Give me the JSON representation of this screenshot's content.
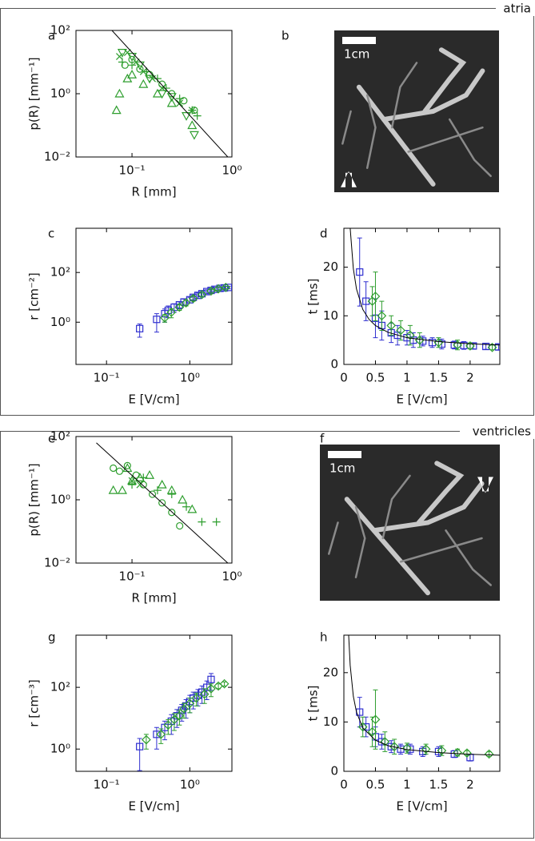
{
  "sections": [
    "atria",
    "ventricles"
  ],
  "chart_data": [
    {
      "type": "scatter",
      "panel": "a",
      "xlabel": "R [mm]",
      "ylabel": "p(R) [mm⁻¹]",
      "xscale": "log",
      "yscale": "log",
      "xlim": [
        0.0275,
        1
      ],
      "ylim": [
        0.01,
        100
      ],
      "xticks": [
        {
          "value": 0.1,
          "label": "10⁻¹"
        },
        {
          "value": 1,
          "label": "10⁰"
        }
      ],
      "yticks": [
        {
          "value": 0.01,
          "label": "10⁻²"
        },
        {
          "value": 1,
          "label": "10⁰"
        },
        {
          "value": 100,
          "label": "10²"
        }
      ],
      "series": [
        {
          "marker": "x",
          "color": "#2e9e2e",
          "x": [
            0.075,
            0.09,
            0.11,
            0.13,
            0.16,
            0.2,
            0.3,
            0.4
          ],
          "values": [
            15,
            20,
            10,
            5,
            3,
            1.5,
            0.5,
            0.3
          ]
        },
        {
          "marker": "o",
          "color": "#2e9e2e",
          "x": [
            0.085,
            0.1,
            0.12,
            0.15,
            0.2,
            0.25,
            0.33,
            0.42
          ],
          "values": [
            8,
            12,
            6,
            4,
            2,
            1,
            0.6,
            0.3
          ]
        },
        {
          "marker": "^",
          "color": "#2e9e2e",
          "x": [
            0.07,
            0.075,
            0.09,
            0.1,
            0.13,
            0.18,
            0.25,
            0.4
          ],
          "values": [
            0.3,
            1,
            3,
            4,
            2,
            1,
            0.5,
            0.1
          ]
        },
        {
          "marker": "v",
          "color": "#2e9e2e",
          "x": [
            0.08,
            0.1,
            0.12,
            0.15,
            0.2,
            0.25,
            0.35,
            0.42
          ],
          "values": [
            20,
            15,
            8,
            3,
            1,
            0.8,
            0.2,
            0.05
          ]
        },
        {
          "marker": "+",
          "color": "#2e9e2e",
          "x": [
            0.08,
            0.1,
            0.14,
            0.18,
            0.22,
            0.3,
            0.4,
            0.45
          ],
          "values": [
            10,
            8,
            5,
            3,
            1.5,
            0.7,
            0.3,
            0.2
          ]
        },
        {
          "kind": "line",
          "color": "#000000",
          "x": [
            0.063,
            0.91
          ],
          "values": [
            100,
            0.01
          ]
        }
      ]
    },
    {
      "type": "image",
      "panel": "b",
      "scale_label": "1cm"
    },
    {
      "type": "scatter",
      "panel": "c",
      "xlabel": "E [V/cm]",
      "ylabel": "r  [cm⁻²]",
      "xscale": "log",
      "yscale": "log",
      "xlim": [
        0.043,
        3.2
      ],
      "ylim": [
        0.02,
        6000
      ],
      "xticks": [
        {
          "value": 0.1,
          "label": "10⁻¹"
        },
        {
          "value": 1,
          "label": "10⁰"
        }
      ],
      "yticks": [
        {
          "value": 1,
          "label": "10⁰"
        },
        {
          "value": 100,
          "label": "10²"
        }
      ],
      "series": [
        {
          "marker": "s",
          "color": "#3030d0",
          "x": [
            0.25,
            0.4,
            0.5,
            0.55,
            0.65,
            0.75,
            0.85,
            1.0,
            1.1,
            1.25,
            1.4,
            1.6,
            1.8,
            2.0,
            2.3,
            2.6,
            2.9
          ],
          "values": [
            0.55,
            1.3,
            2.2,
            3,
            4,
            5,
            6.5,
            8,
            10,
            12,
            14,
            17,
            19,
            21,
            23,
            24,
            25
          ],
          "errors": [
            0.3,
            0.9,
            1.2,
            1.5,
            1.5,
            1.5,
            2,
            2,
            2,
            3,
            3,
            3,
            3,
            3,
            3,
            3,
            3
          ]
        },
        {
          "marker": "d",
          "color": "#2e9e2e",
          "x": [
            0.5,
            0.6,
            0.75,
            0.9,
            1.1,
            1.4,
            1.8,
            2.2,
            2.7
          ],
          "values": [
            1.5,
            2.5,
            4,
            6,
            9,
            13,
            18,
            22,
            25
          ],
          "errors": [
            0.5,
            1,
            1,
            1.5,
            2,
            2,
            3,
            3,
            3
          ]
        }
      ]
    },
    {
      "type": "scatter",
      "panel": "d",
      "xlabel": "E [V/cm]",
      "ylabel": "t  [ms]",
      "xscale": "linear",
      "yscale": "linear",
      "xlim": [
        0,
        2.47
      ],
      "ylim": [
        0,
        28
      ],
      "xticks": [
        0,
        0.5,
        1,
        1.5,
        2
      ],
      "yticks": [
        0,
        10,
        20
      ],
      "series": [
        {
          "marker": "s",
          "color": "#3030d0",
          "x": [
            0.25,
            0.35,
            0.5,
            0.6,
            0.75,
            0.85,
            1.0,
            1.1,
            1.25,
            1.4,
            1.55,
            1.75,
            1.9,
            2.05,
            2.25,
            2.45
          ],
          "values": [
            19,
            13,
            9.5,
            8,
            6.5,
            6,
            5.5,
            5,
            4.8,
            4.5,
            4.2,
            4,
            3.9,
            3.8,
            3.7,
            3.6
          ],
          "errors": [
            7,
            4,
            4,
            3,
            2,
            2,
            1.5,
            1.5,
            1,
            1,
            1,
            0.8,
            0.8,
            0.6,
            0.6,
            0.6
          ]
        },
        {
          "marker": "d",
          "color": "#2e9e2e",
          "x": [
            0.45,
            0.5,
            0.6,
            0.75,
            0.9,
            1.05,
            1.2,
            1.5,
            1.8,
            2.0,
            2.35
          ],
          "values": [
            13,
            14,
            10,
            8,
            7,
            6,
            5,
            4.5,
            4,
            3.8,
            3.5
          ],
          "errors": [
            3,
            5,
            3,
            2,
            2,
            2,
            1.5,
            1,
            1,
            0.6,
            0.5
          ]
        },
        {
          "kind": "line",
          "color": "#000000",
          "x": [
            0.1,
            0.15,
            0.2,
            0.3,
            0.4,
            0.5,
            0.7,
            1,
            1.5,
            2,
            2.47
          ],
          "values": [
            28,
            19.7,
            15.5,
            11.3,
            9.25,
            8,
            6.6,
            5.5,
            4.7,
            4.25,
            4.0
          ]
        }
      ]
    },
    {
      "type": "scatter",
      "panel": "e",
      "xlabel": "R [mm]",
      "ylabel": "p(R) [mm⁻¹]",
      "xscale": "log",
      "yscale": "log",
      "xlim": [
        0.0275,
        1
      ],
      "ylim": [
        0.01,
        100
      ],
      "xticks": [
        {
          "value": 0.1,
          "label": "10⁻¹"
        },
        {
          "value": 1,
          "label": "10⁰"
        }
      ],
      "yticks": [
        {
          "value": 0.01,
          "label": "10⁻²"
        },
        {
          "value": 1,
          "label": "10⁰"
        },
        {
          "value": 100,
          "label": "10²"
        }
      ],
      "series": [
        {
          "marker": "o",
          "color": "#2e9e2e",
          "x": [
            0.065,
            0.075,
            0.09,
            0.11,
            0.13,
            0.16,
            0.2,
            0.25,
            0.3
          ],
          "values": [
            10,
            8,
            12,
            6,
            3,
            1.5,
            0.8,
            0.4,
            0.15
          ]
        },
        {
          "marker": "^",
          "color": "#2e9e2e",
          "x": [
            0.065,
            0.08,
            0.09,
            0.1,
            0.12,
            0.15,
            0.2,
            0.25,
            0.32,
            0.4
          ],
          "values": [
            2,
            2,
            10,
            4,
            5,
            6,
            3,
            2,
            1,
            0.5
          ]
        },
        {
          "marker": "+",
          "color": "#2e9e2e",
          "x": [
            0.1,
            0.13,
            0.18,
            0.25,
            0.35,
            0.5,
            0.7
          ],
          "values": [
            3,
            5,
            2,
            1.5,
            0.6,
            0.2,
            0.2
          ]
        },
        {
          "marker": "x",
          "color": "#2e9e2e",
          "x": [
            0.1,
            0.12
          ],
          "values": [
            4,
            3
          ]
        },
        {
          "kind": "line",
          "color": "#000000",
          "x": [
            0.044,
            0.91
          ],
          "values": [
            63,
            0.01
          ]
        }
      ]
    },
    {
      "type": "image",
      "panel": "f",
      "scale_label": "1cm"
    },
    {
      "type": "scatter",
      "panel": "g",
      "xlabel": "E [V/cm]",
      "ylabel": "r  [cm⁻³]",
      "xscale": "log",
      "yscale": "log",
      "xlim": [
        0.043,
        3.2
      ],
      "ylim": [
        0.19,
        4900
      ],
      "xticks": [
        {
          "value": 0.1,
          "label": "10⁻¹"
        },
        {
          "value": 1,
          "label": "10⁰"
        }
      ],
      "yticks": [
        {
          "value": 1,
          "label": "10⁰"
        },
        {
          "value": 100,
          "label": "10²"
        }
      ],
      "series": [
        {
          "marker": "s",
          "color": "#3030d0",
          "x": [
            0.25,
            0.4,
            0.5,
            0.6,
            0.7,
            0.8,
            0.9,
            1.0,
            1.1,
            1.25,
            1.4,
            1.6,
            1.8
          ],
          "values": [
            1.2,
            3,
            5,
            8,
            12,
            18,
            25,
            35,
            45,
            55,
            70,
            100,
            180
          ],
          "errors": [
            1,
            2,
            3,
            5,
            7,
            10,
            15,
            20,
            25,
            30,
            40,
            60,
            100
          ]
        },
        {
          "marker": "d",
          "color": "#2e9e2e",
          "x": [
            0.3,
            0.45,
            0.55,
            0.65,
            0.75,
            0.85,
            1.0,
            1.2,
            1.5,
            1.8,
            2.2,
            2.6
          ],
          "values": [
            2,
            3,
            6,
            9,
            12,
            20,
            30,
            45,
            60,
            90,
            110,
            130
          ],
          "errors": [
            1,
            1.5,
            3,
            5,
            6,
            10,
            15,
            20,
            30,
            40,
            20,
            20
          ]
        }
      ]
    },
    {
      "type": "scatter",
      "panel": "h",
      "xlabel": "E [V/cm]",
      "ylabel": "t  [ms]",
      "xscale": "linear",
      "yscale": "linear",
      "xlim": [
        0,
        2.47
      ],
      "ylim": [
        0,
        27.6
      ],
      "xticks": [
        0,
        0.5,
        1,
        1.5,
        2
      ],
      "yticks": [
        0,
        10,
        20
      ],
      "series": [
        {
          "marker": "s",
          "color": "#3030d0",
          "x": [
            0.25,
            0.35,
            0.5,
            0.6,
            0.75,
            0.9,
            1.05,
            1.25,
            1.5,
            1.75,
            2.0
          ],
          "values": [
            12,
            9,
            7,
            6,
            5,
            4.5,
            4.5,
            4,
            4,
            3.5,
            2.8
          ],
          "errors": [
            3,
            2,
            2,
            1.5,
            1.2,
            1,
            1,
            1,
            1,
            0.7,
            0.7
          ]
        },
        {
          "marker": "d",
          "color": "#2e9e2e",
          "x": [
            0.3,
            0.45,
            0.5,
            0.65,
            0.8,
            1,
            1.3,
            1.55,
            1.8,
            1.95,
            2.3
          ],
          "values": [
            9,
            8,
            10.5,
            6,
            5,
            4.7,
            4.5,
            4.2,
            3.8,
            3.7,
            3.5
          ],
          "errors": [
            2,
            3,
            6,
            2,
            1.5,
            1,
            1,
            1,
            0.7,
            0.5,
            0.5
          ]
        },
        {
          "kind": "line",
          "color": "#000000",
          "x": [
            0.075,
            0.1,
            0.15,
            0.2,
            0.3,
            0.5,
            0.7,
            1,
            1.5,
            2,
            2.47
          ],
          "values": [
            27.8,
            21.5,
            15.2,
            12,
            8.8,
            6.3,
            5.2,
            4.4,
            3.8,
            3.45,
            3.27
          ]
        }
      ]
    }
  ]
}
